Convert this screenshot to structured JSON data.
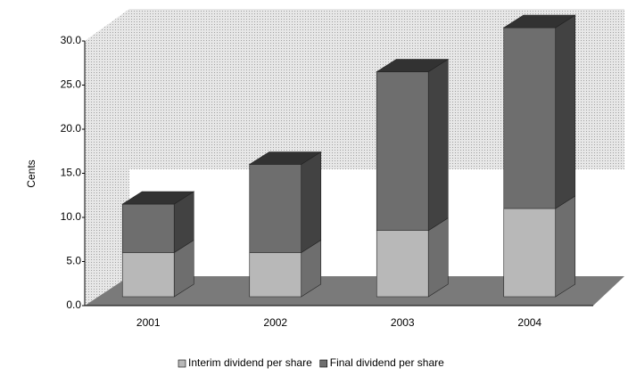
{
  "chart_data": {
    "type": "bar",
    "stacked": true,
    "y_label": "Cents",
    "categories": [
      "2001",
      "2002",
      "2003",
      "2004"
    ],
    "series": [
      {
        "name": "Interim dividend per share",
        "color": "#b8b8b8",
        "values": [
          5.0,
          5.0,
          7.5,
          10.0
        ]
      },
      {
        "name": "Final dividend per share",
        "color": "#6e6e6e",
        "values": [
          5.5,
          10.0,
          18.0,
          20.5
        ]
      }
    ],
    "ylim": [
      0,
      30
    ],
    "yticks": [
      {
        "value": 0,
        "label": "0.0"
      },
      {
        "value": 5,
        "label": "5.0"
      },
      {
        "value": 10,
        "label": "10.0"
      },
      {
        "value": 15,
        "label": "15.0"
      },
      {
        "value": 20,
        "label": "20.0"
      },
      {
        "value": 25,
        "label": "25.0"
      },
      {
        "value": 30,
        "label": "30.0"
      }
    ],
    "grid": false,
    "legend": "bottom"
  }
}
